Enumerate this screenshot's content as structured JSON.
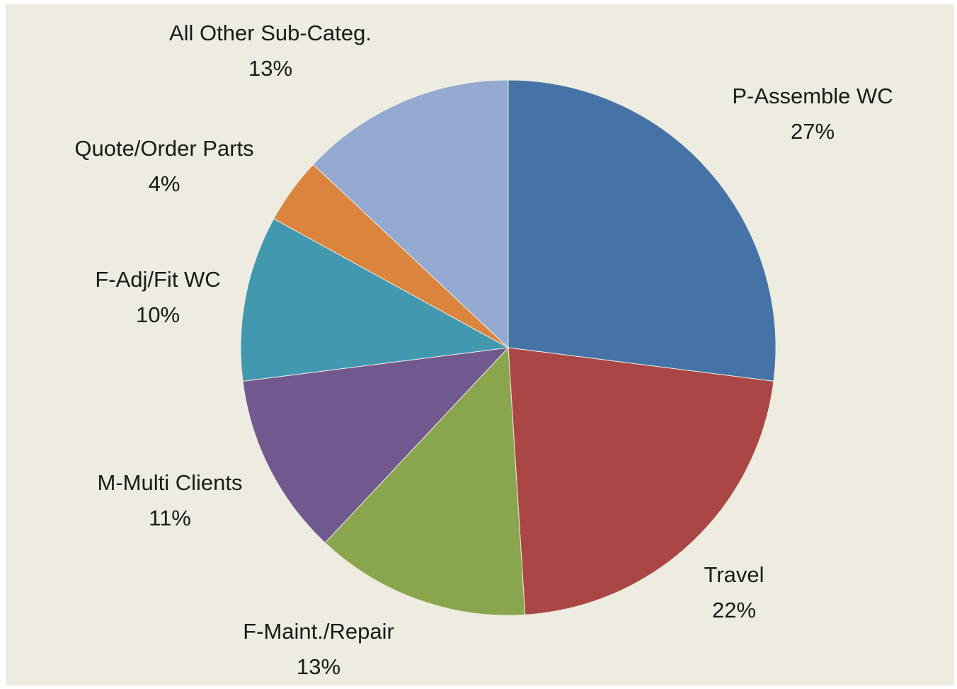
{
  "chart_data": {
    "type": "pie",
    "categories": [
      "P-Assemble WC",
      "Travel",
      "F-Maint./Repair",
      "M-Multi Clients",
      "F-Adj/Fit WC",
      "Quote/Order Parts",
      "All Other Sub-Categ."
    ],
    "values": [
      27,
      22,
      13,
      11,
      10,
      4,
      13
    ],
    "value_labels": [
      "27%",
      "22%",
      "13%",
      "11%",
      "10%",
      "4%",
      "13%"
    ],
    "colors": [
      "#4572a7",
      "#aa4643",
      "#89a54e",
      "#71588f",
      "#4198af",
      "#db843d",
      "#93a9cf"
    ]
  }
}
